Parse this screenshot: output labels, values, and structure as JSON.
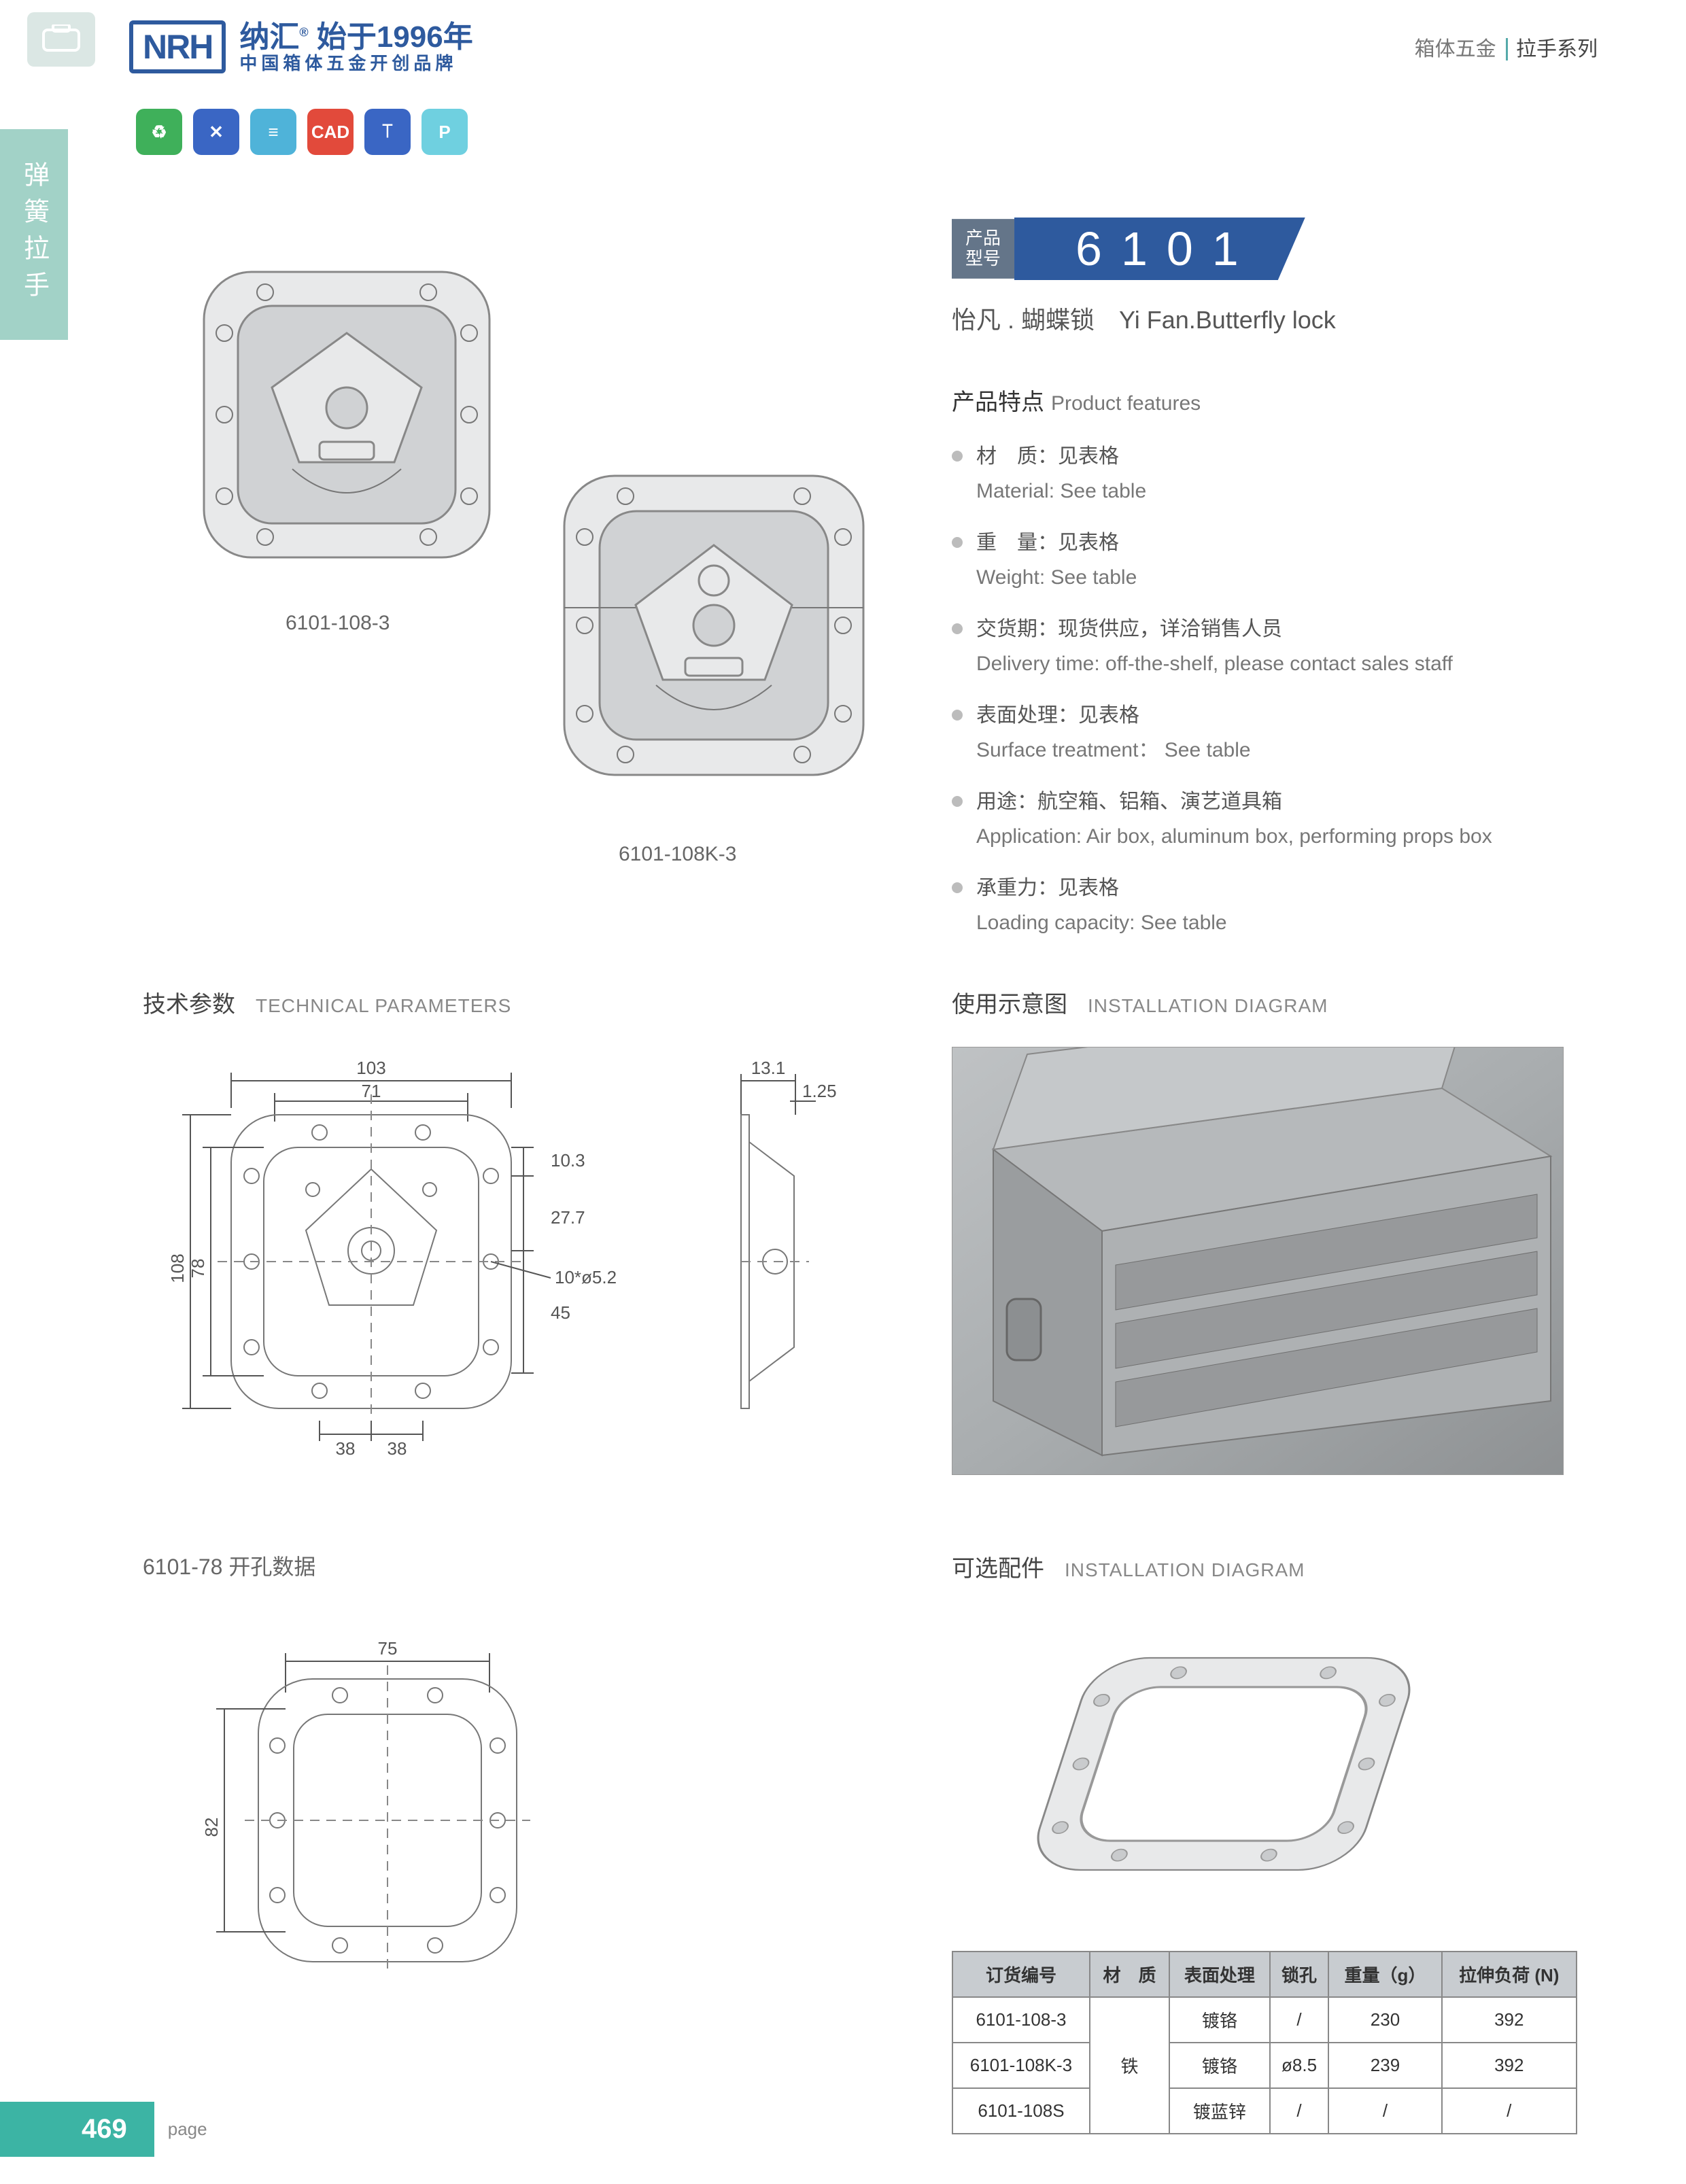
{
  "header": {
    "logo_text": "NRH",
    "brand_cn_1": "纳汇",
    "brand_year": "始于1996年",
    "brand_cn_2": "中国箱体五金开创品牌",
    "breadcrumb_1": "箱体五金",
    "breadcrumb_2": "拉手系列"
  },
  "left_tab": "弹簧拉手",
  "icon_row": {
    "items": [
      {
        "bg": "#3fb05a",
        "glyph": "♻"
      },
      {
        "bg": "#3a66c4",
        "glyph": "✕"
      },
      {
        "bg": "#4fb3d9",
        "glyph": "≡"
      },
      {
        "bg": "#e24a3b",
        "glyph": "CAD"
      },
      {
        "bg": "#3a66c4",
        "glyph": "⟙"
      },
      {
        "bg": "#6fd0e0",
        "glyph": "P"
      }
    ]
  },
  "product_images": {
    "label1": "6101-108-3",
    "label2": "6101-108K-3"
  },
  "model": {
    "badge_l1": "产品",
    "badge_l2": "型号",
    "number": "6101",
    "name_cn": "怡凡 . 蝴蝶锁",
    "name_en": "Yi Fan.Butterfly lock"
  },
  "features": {
    "title_cn": "产品特点",
    "title_en": "Product features",
    "items": [
      {
        "cn": "材　质：见表格",
        "en": "Material: See table"
      },
      {
        "cn": "重　量：见表格",
        "en": "Weight: See table"
      },
      {
        "cn": "交货期：现货供应，详洽销售人员",
        "en": "Delivery time: off-the-shelf, please contact sales staff"
      },
      {
        "cn": "表面处理：见表格",
        "en": "Surface treatment： See table"
      },
      {
        "cn": "用途：航空箱、铝箱、演艺道具箱",
        "en": "Application: Air box, aluminum box, performing props box"
      },
      {
        "cn": "承重力：见表格",
        "en": "Loading capacity: See table"
      }
    ]
  },
  "sections": {
    "tech_cn": "技术参数",
    "tech_en": "TECHNICAL PARAMETERS",
    "inst_cn": "使用示意图",
    "inst_en": "INSTALLATION DIAGRAM",
    "sub78": "6101-78 开孔数据",
    "opt_cn": "可选配件",
    "opt_en": "INSTALLATION DIAGRAM"
  },
  "dimensions": {
    "front": {
      "w": "103",
      "inner_w": "71",
      "h": "108",
      "inner_h": "78",
      "s1": "10.3",
      "s2": "27.7",
      "s3": "45",
      "b1": "38",
      "b2": "38",
      "hole": "10*ø5.2"
    },
    "side": {
      "d1": "13.1",
      "d2": "1.25"
    },
    "cut": {
      "w": "75",
      "h": "82"
    }
  },
  "table": {
    "headers": [
      "订货编号",
      "材　质",
      "表面处理",
      "锁孔",
      "重量（g）",
      "拉伸负荷 (N)"
    ],
    "rows": [
      [
        "6101-108-3",
        "",
        "镀铬",
        "/",
        "230",
        "392"
      ],
      [
        "6101-108K-3",
        "铁",
        "镀铬",
        "ø8.5",
        "239",
        "392"
      ],
      [
        "6101-108S",
        "",
        "镀蓝锌",
        "/",
        "/",
        "/"
      ]
    ]
  },
  "footer": {
    "page": "469",
    "label": "page"
  }
}
